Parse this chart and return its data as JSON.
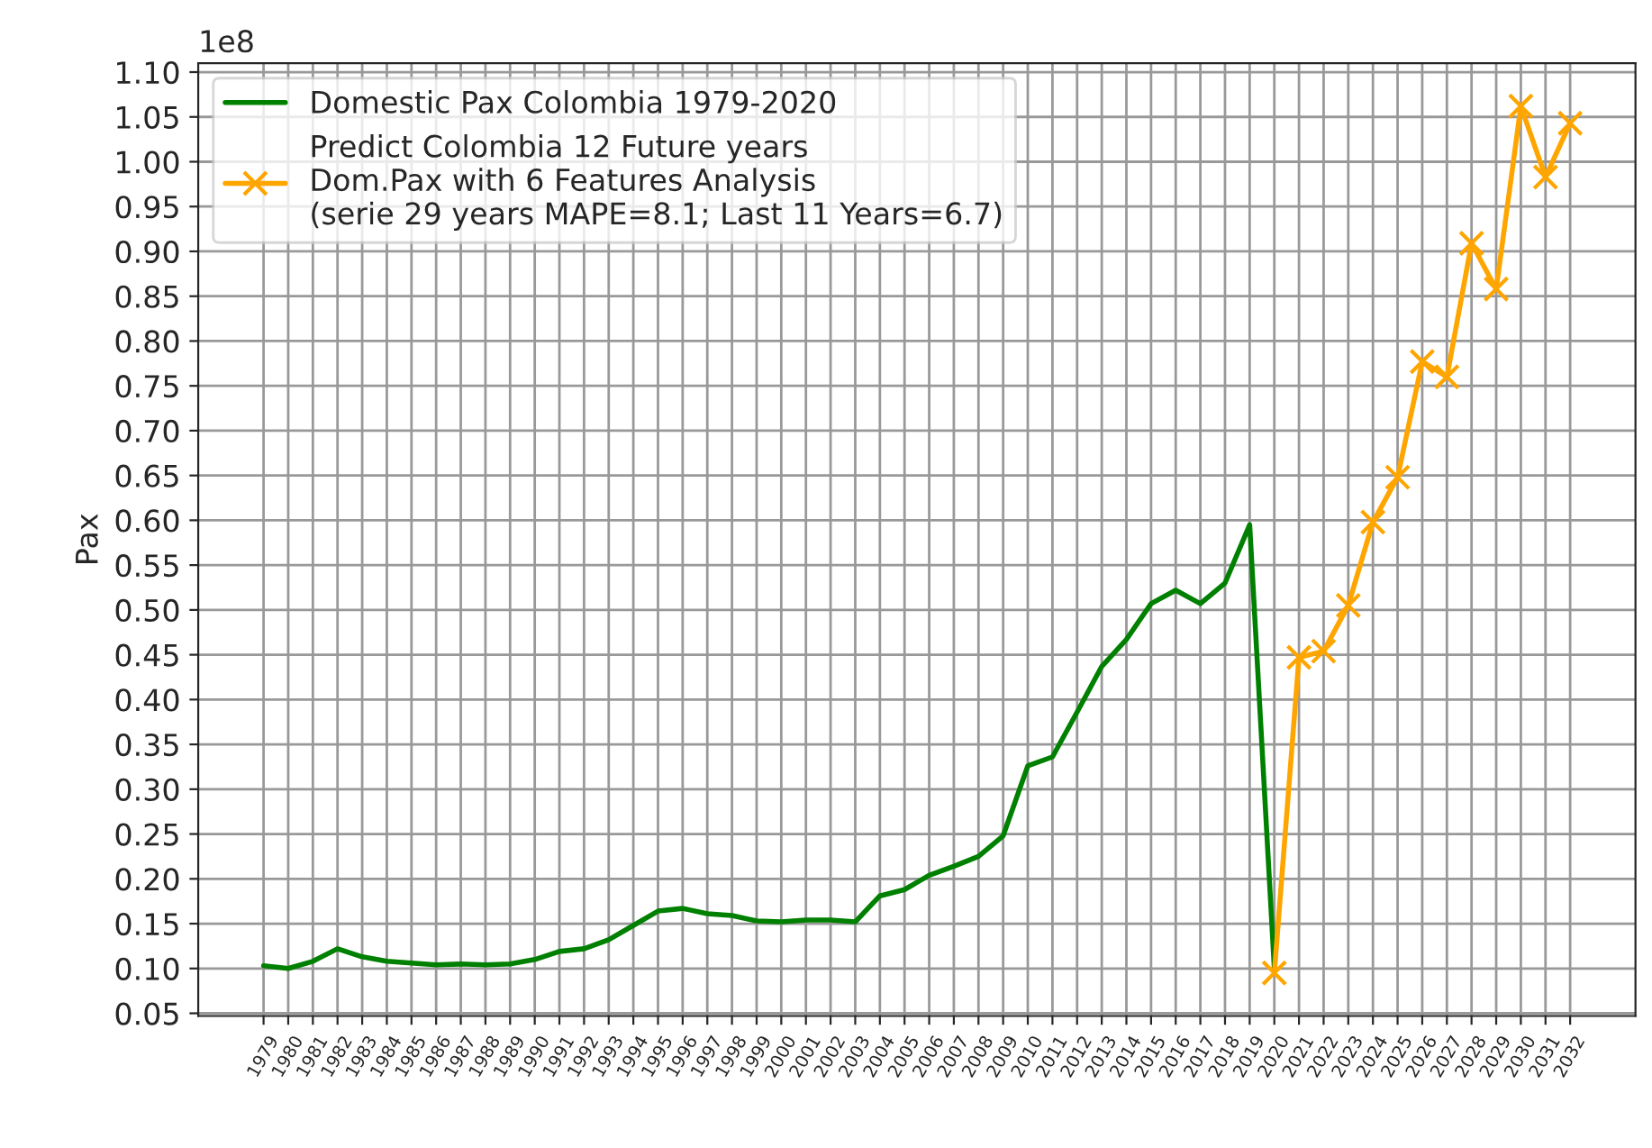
{
  "chart_data": {
    "type": "line",
    "ylabel": "Pax",
    "annotations": [
      "1e8"
    ],
    "categories": [
      "1979",
      "1980",
      "1981",
      "1982",
      "1983",
      "1984",
      "1985",
      "1986",
      "1987",
      "1988",
      "1989",
      "1990",
      "1991",
      "1992",
      "1993",
      "1994",
      "1995",
      "1996",
      "1997",
      "1998",
      "1999",
      "2000",
      "2001",
      "2002",
      "2003",
      "2004",
      "2005",
      "2006",
      "2007",
      "2008",
      "2009",
      "2010",
      "2011",
      "2012",
      "2013",
      "2014",
      "2015",
      "2016",
      "2017",
      "2018",
      "2019",
      "2020",
      "2021",
      "2022",
      "2023",
      "2024",
      "2025",
      "2026",
      "2027",
      "2028",
      "2029",
      "2030",
      "2031",
      "2032"
    ],
    "series": [
      {
        "name": "Domestic Pax Colombia 1979-2020",
        "color": "#008000",
        "marker": "none",
        "values": [
          0.103,
          0.1,
          0.108,
          0.122,
          0.113,
          0.108,
          0.106,
          0.104,
          0.105,
          0.104,
          0.105,
          0.11,
          0.119,
          0.122,
          0.132,
          0.148,
          0.164,
          0.167,
          0.161,
          0.159,
          0.153,
          0.152,
          0.154,
          0.154,
          0.152,
          0.181,
          0.188,
          0.204,
          0.214,
          0.225,
          0.248,
          0.326,
          0.336,
          0.386,
          0.437,
          0.467,
          0.507,
          0.522,
          0.507,
          0.53,
          0.595,
          0.1,
          null,
          null,
          null,
          null,
          null,
          null,
          null,
          null,
          null,
          null,
          null,
          null
        ]
      },
      {
        "name": "Predict Colombia 12 Future years\nDom.Pax with 6 Features Analysis\n(serie 29 years MAPE=8.1; Last 11 Years=6.7)",
        "color": "#ffa500",
        "marker": "cross",
        "values": [
          null,
          null,
          null,
          null,
          null,
          null,
          null,
          null,
          null,
          null,
          null,
          null,
          null,
          null,
          null,
          null,
          null,
          null,
          null,
          null,
          null,
          null,
          null,
          null,
          null,
          null,
          null,
          null,
          null,
          null,
          null,
          null,
          null,
          null,
          null,
          null,
          null,
          null,
          null,
          null,
          null,
          0.095,
          0.447,
          0.454,
          0.505,
          0.598,
          0.648,
          0.777,
          0.76,
          0.909,
          0.858,
          1.062,
          0.983,
          1.043
        ]
      }
    ],
    "ylim": [
      0.047,
      1.11
    ],
    "yticks": [
      0.05,
      {
        "value": 0.1,
        "label": "0.10"
      },
      0.15,
      {
        "value": 0.2,
        "label": "0.20"
      },
      0.25,
      {
        "value": 0.3,
        "label": "0.30"
      },
      0.35,
      {
        "value": 0.4,
        "label": "0.40"
      },
      0.45,
      {
        "value": 0.5,
        "label": "0.50"
      },
      0.55,
      {
        "value": 0.6,
        "label": "0.60"
      },
      0.65,
      {
        "value": 0.7,
        "label": "0.70"
      },
      0.75,
      {
        "value": 0.8,
        "label": "0.80"
      },
      0.85,
      {
        "value": 0.9,
        "label": "0.90"
      },
      0.95,
      {
        "value": 1.0,
        "label": "1.00"
      },
      1.05,
      {
        "value": 1.1,
        "label": "1.10"
      }
    ],
    "grid": true,
    "legend": "top left",
    "line_style": "solid"
  }
}
